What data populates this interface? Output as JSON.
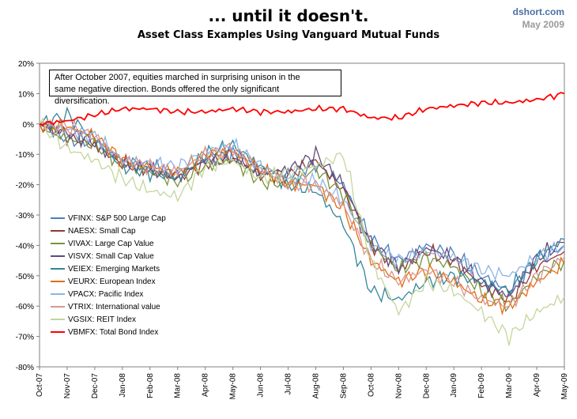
{
  "header": {
    "title": "... until it doesn't.",
    "subtitle": "Asset Class Examples Using Vanguard  Mutual Funds",
    "source": "dshort.com",
    "date": "May 2009"
  },
  "annotation": {
    "line1": "After October 2007, equities marched in surprising unison in the",
    "line2": "same negative direction. Bonds offered the only significant diversification."
  },
  "chart_data": {
    "type": "line",
    "title": "Asset Class Examples Using Vanguard  Mutual Funds",
    "xlabel": "",
    "ylabel": "",
    "ylim": [
      -80,
      20
    ],
    "yticks": [
      "20%",
      "10%",
      "0%",
      "-10%",
      "-20%",
      "-30%",
      "-40%",
      "-50%",
      "-60%",
      "-70%",
      "-80%"
    ],
    "categories": [
      "Oct-07",
      "Nov-07",
      "Dec-07",
      "Jan-08",
      "Feb-08",
      "Mar-08",
      "Apr-08",
      "May-08",
      "Jun-08",
      "Jul-08",
      "Aug-08",
      "Sep-08",
      "Oct-08",
      "Nov-08",
      "Dec-08",
      "Jan-09",
      "Feb-09",
      "Mar-09",
      "Apr-09",
      "May-09"
    ],
    "legend_position": "bottom-left",
    "series": [
      {
        "name": "VFINX: S&P 500 Large Cap",
        "color": "#4a7ebb",
        "values": [
          0,
          -5,
          -6,
          -12,
          -14,
          -17,
          -12,
          -10,
          -16,
          -17,
          -13,
          -20,
          -38,
          -45,
          -40,
          -43,
          -50,
          -55,
          -45,
          -40
        ]
      },
      {
        "name": "NAESX: Small Cap",
        "color": "#943634",
        "values": [
          0,
          -4,
          -7,
          -13,
          -15,
          -18,
          -13,
          -11,
          -17,
          -17,
          -12,
          -22,
          -40,
          -48,
          -42,
          -45,
          -53,
          -58,
          -47,
          -42
        ]
      },
      {
        "name": "VIVAX: Large Cap Value",
        "color": "#77933c",
        "values": [
          0,
          -5,
          -7,
          -13,
          -16,
          -19,
          -14,
          -12,
          -19,
          -20,
          -15,
          -23,
          -40,
          -48,
          -44,
          -47,
          -55,
          -60,
          -50,
          -45
        ]
      },
      {
        "name": "VISVX: Small Cap Value",
        "color": "#604a7b",
        "values": [
          0,
          -3,
          -6,
          -13,
          -15,
          -17,
          -12,
          -10,
          -16,
          -15,
          -10,
          -20,
          -39,
          -47,
          -41,
          -44,
          -52,
          -57,
          -44,
          -39
        ]
      },
      {
        "name": "VEIEX: Emerging Markets",
        "color": "#31859c",
        "values": [
          0,
          3,
          -5,
          -14,
          -16,
          -18,
          -10,
          -7,
          -14,
          -20,
          -22,
          -33,
          -55,
          -58,
          -52,
          -50,
          -52,
          -55,
          -44,
          -38
        ]
      },
      {
        "name": "VEURX: European Index",
        "color": "#e46c0a",
        "values": [
          0,
          -1,
          -4,
          -12,
          -14,
          -16,
          -10,
          -9,
          -15,
          -20,
          -20,
          -28,
          -45,
          -52,
          -48,
          -52,
          -58,
          -60,
          -52,
          -46
        ]
      },
      {
        "name": "VPACX: Pacific Index",
        "color": "#8eb4e3",
        "values": [
          0,
          -2,
          -4,
          -12,
          -13,
          -14,
          -9,
          -7,
          -14,
          -18,
          -19,
          -25,
          -40,
          -45,
          -42,
          -44,
          -48,
          -50,
          -44,
          -40
        ]
      },
      {
        "name": "VTRIX: International value",
        "color": "#d99694",
        "values": [
          0,
          -1,
          -4,
          -12,
          -14,
          -16,
          -10,
          -8,
          -15,
          -20,
          -20,
          -27,
          -45,
          -52,
          -48,
          -52,
          -58,
          -60,
          -50,
          -44
        ]
      },
      {
        "name": "VGSIX: REIT Index",
        "color": "#c3d69b",
        "values": [
          0,
          -8,
          -12,
          -18,
          -22,
          -24,
          -14,
          -12,
          -18,
          -16,
          -14,
          -10,
          -45,
          -62,
          -52,
          -55,
          -62,
          -70,
          -62,
          -57
        ]
      },
      {
        "name": "VBMFX: Total Bond Index",
        "color": "#ff0000",
        "values": [
          0,
          1,
          3,
          5,
          5,
          4,
          4,
          5,
          4,
          4,
          5,
          5,
          2,
          2,
          5,
          6,
          7,
          7,
          8,
          10
        ]
      }
    ]
  }
}
